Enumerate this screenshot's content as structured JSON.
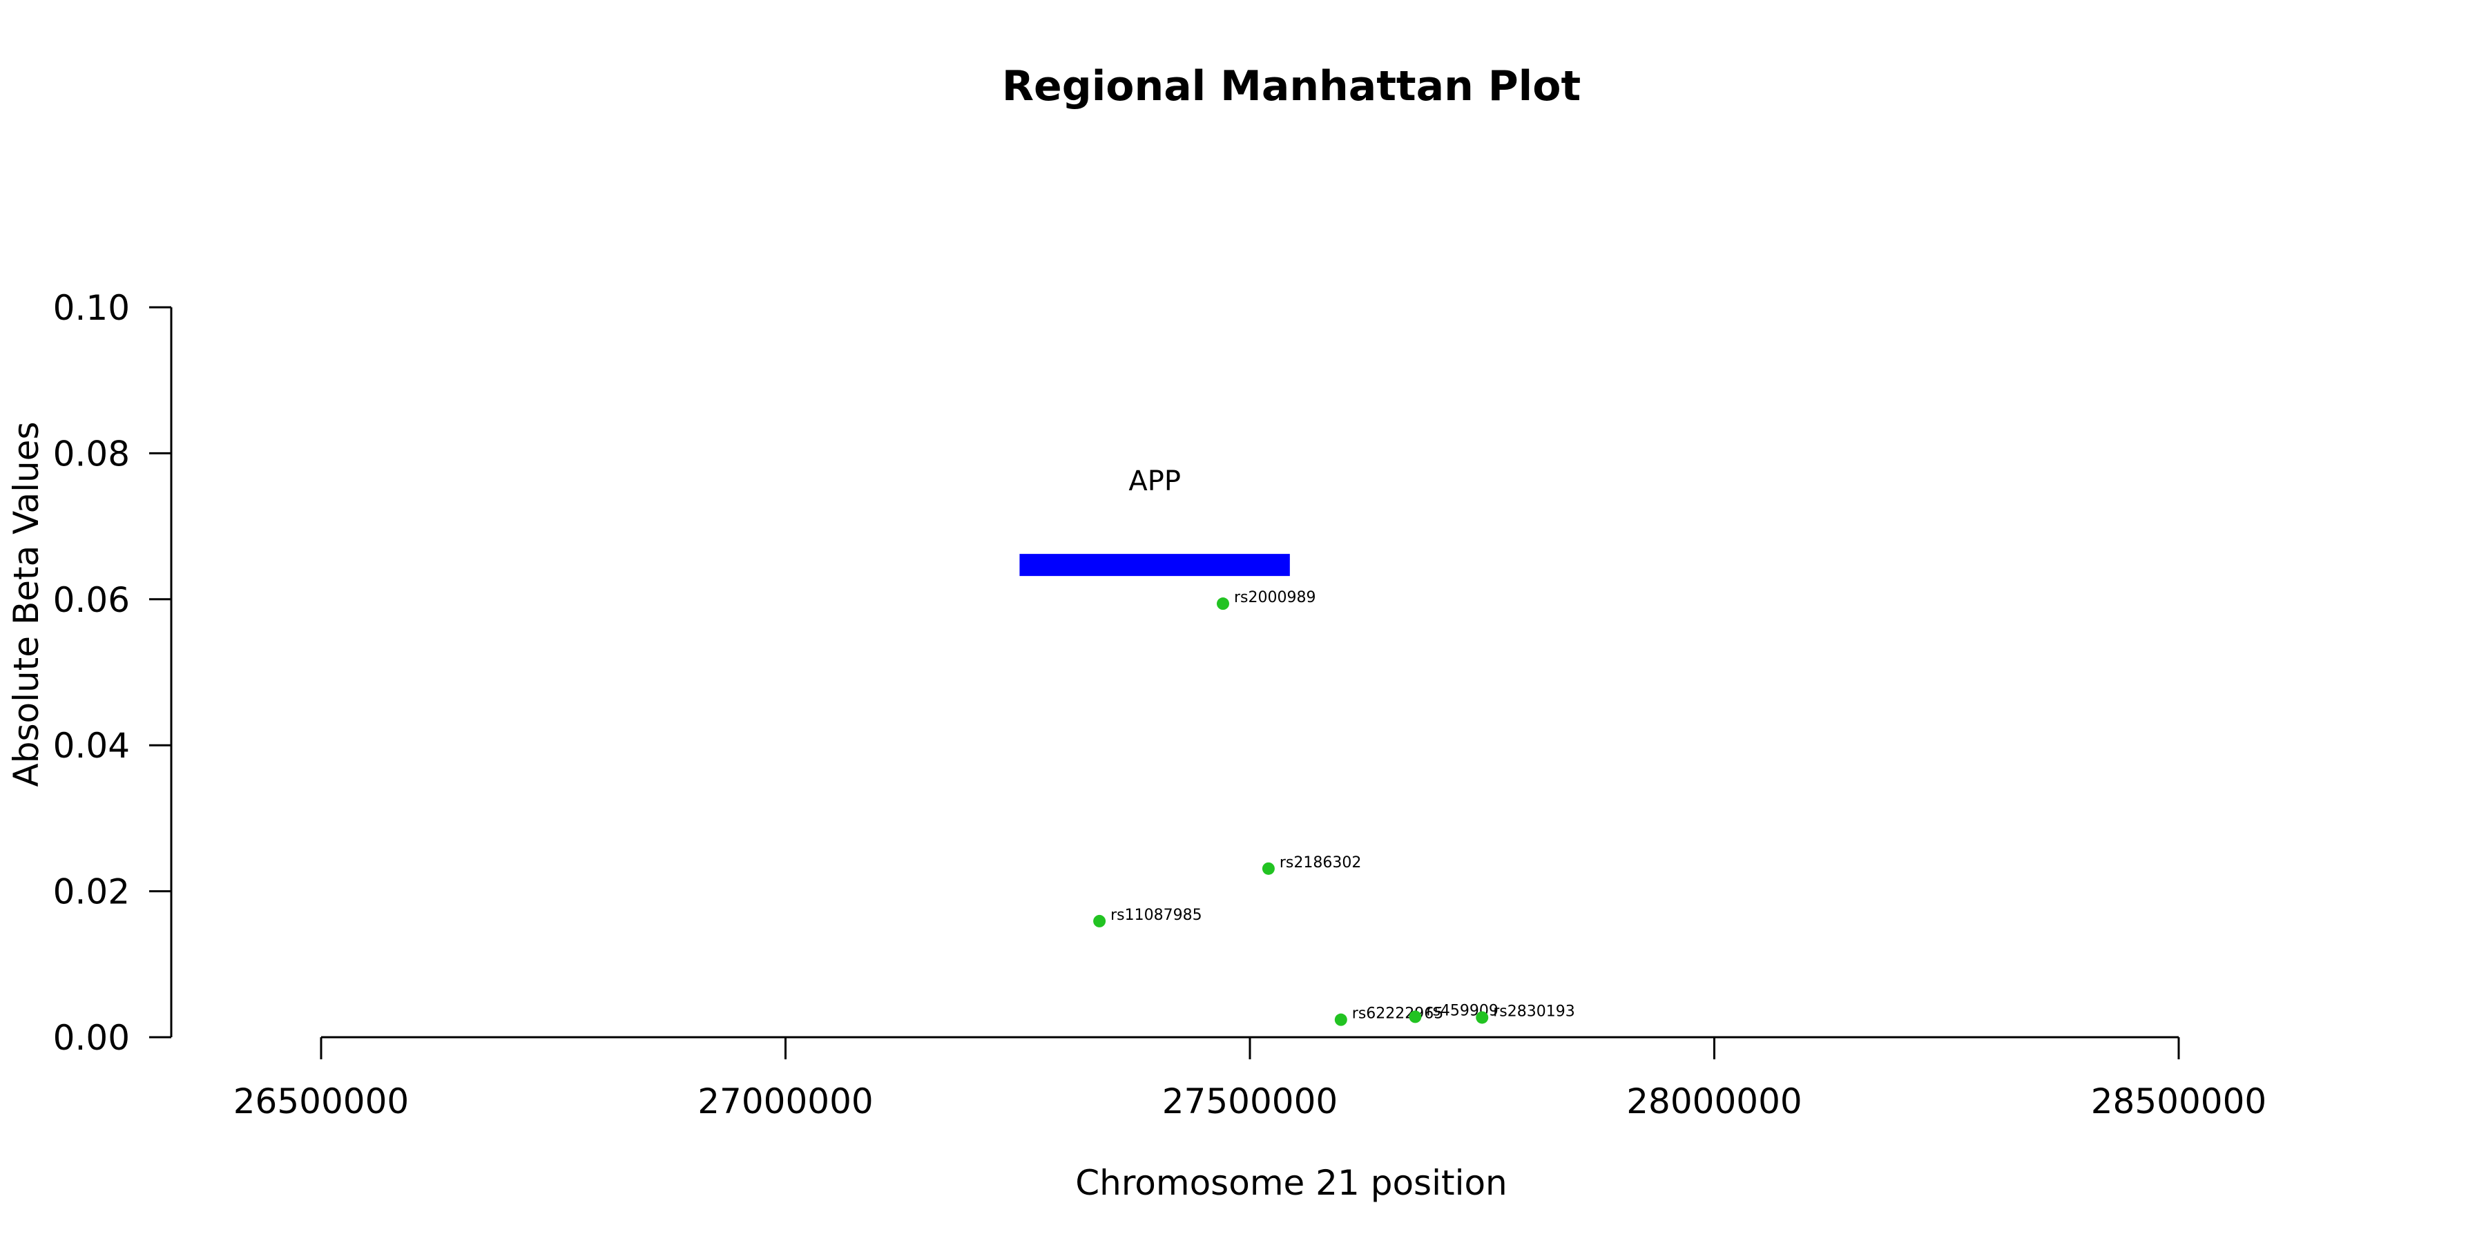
{
  "chart_data": {
    "type": "scatter",
    "title": "Regional Manhattan Plot",
    "xlabel": "Chromosome 21 position",
    "ylabel": "Absolute Beta Values",
    "xlim": [
      26500000,
      28500000
    ],
    "ylim": [
      0,
      0.1
    ],
    "x_ticks": [
      26500000,
      27000000,
      27500000,
      28000000,
      28500000
    ],
    "x_tick_labels": [
      "26500000",
      "27000000",
      "27500000",
      "28000000",
      "28500000"
    ],
    "y_ticks": [
      0,
      0.02,
      0.04,
      0.06,
      0.08,
      0.1
    ],
    "y_tick_labels": [
      "0.00",
      "0.02",
      "0.04",
      "0.06",
      "0.08",
      "0.10"
    ],
    "grid": false,
    "points": [
      {
        "x": 27471000,
        "y": 0.0594,
        "label": "rs2000989"
      },
      {
        "x": 27520000,
        "y": 0.0231,
        "label": "rs2186302"
      },
      {
        "x": 27338000,
        "y": 0.0159,
        "label": "rs11087985"
      },
      {
        "x": 27598000,
        "y": 0.0024,
        "label": "rs62222965"
      },
      {
        "x": 27678000,
        "y": 0.0028,
        "label": "rs459909"
      },
      {
        "x": 27750000,
        "y": 0.0027,
        "label": "rs2830193"
      }
    ],
    "genes": [
      {
        "name": "APP",
        "start": 27252000,
        "end": 27543000,
        "y": 0.0647
      }
    ],
    "colors": {
      "points": "#22c322",
      "gene": "#0000ff",
      "axes": "#000000"
    }
  }
}
